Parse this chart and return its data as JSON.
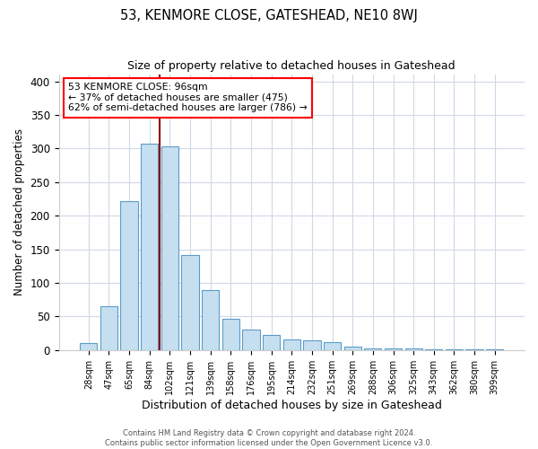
{
  "title": "53, KENMORE CLOSE, GATESHEAD, NE10 8WJ",
  "subtitle": "Size of property relative to detached houses in Gateshead",
  "xlabel": "Distribution of detached houses by size in Gateshead",
  "ylabel": "Number of detached properties",
  "bar_labels": [
    "28sqm",
    "47sqm",
    "65sqm",
    "84sqm",
    "102sqm",
    "121sqm",
    "139sqm",
    "158sqm",
    "176sqm",
    "195sqm",
    "214sqm",
    "232sqm",
    "251sqm",
    "269sqm",
    "288sqm",
    "306sqm",
    "325sqm",
    "343sqm",
    "362sqm",
    "380sqm",
    "399sqm"
  ],
  "bar_values": [
    10,
    65,
    222,
    307,
    303,
    141,
    90,
    46,
    31,
    22,
    16,
    14,
    12,
    5,
    3,
    2,
    2,
    1,
    1,
    1,
    1
  ],
  "bar_color": "#c6dff0",
  "bar_edge_color": "#5b9dc9",
  "vline_x_idx": 3.5,
  "vline_color": "#8b0000",
  "annotation_text": "53 KENMORE CLOSE: 96sqm\n← 37% of detached houses are smaller (475)\n62% of semi-detached houses are larger (786) →",
  "ylim": [
    0,
    410
  ],
  "yticks": [
    0,
    50,
    100,
    150,
    200,
    250,
    300,
    350,
    400
  ],
  "footer1": "Contains HM Land Registry data © Crown copyright and database right 2024.",
  "footer2": "Contains public sector information licensed under the Open Government Licence v3.0."
}
